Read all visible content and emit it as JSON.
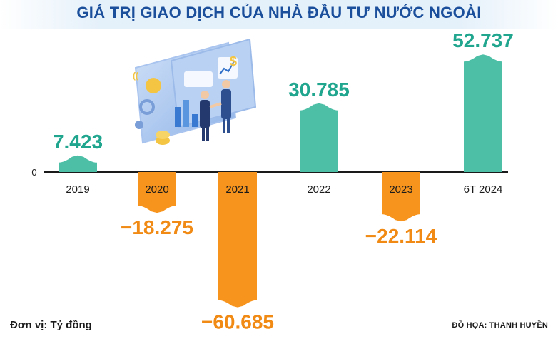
{
  "title": "GIÁ TRỊ GIAO DỊCH CỦA NHÀ ĐẦU TƯ NƯỚC NGOÀI",
  "unit_label": "Đơn vị: Tỷ đồng",
  "credit": "ĐỒ HỌA: THANH HUYỀN",
  "colors": {
    "positive": "#4cbfa6",
    "negative": "#f7941d",
    "positive_text": "#20a58f",
    "negative_text": "#f08a14",
    "title": "#1b4f9c"
  },
  "chart_data": {
    "type": "bar",
    "title": "GIÁ TRỊ GIAO DỊCH CỦA NHÀ ĐẦU TƯ NƯỚC NGOÀI",
    "categories": [
      "2019",
      "2020",
      "2021",
      "2022",
      "2023",
      "6T 2024"
    ],
    "values": [
      7423,
      -18275,
      -60685,
      30785,
      -22114,
      52737
    ],
    "value_labels": [
      "7.423",
      "−18.275",
      "−60.685",
      "30.785",
      "−22.114",
      "52.737"
    ],
    "zero_label": "0",
    "ylim": [
      -65000,
      60000
    ],
    "grid": false,
    "legend": "none"
  }
}
